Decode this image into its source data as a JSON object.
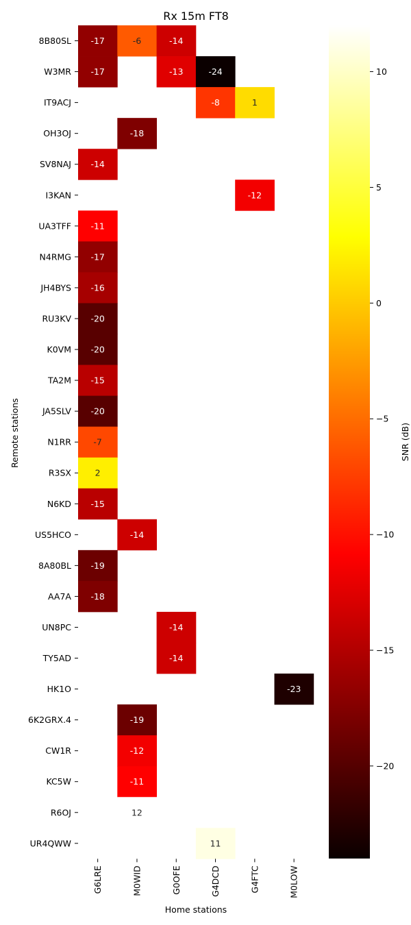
{
  "chart_data": {
    "type": "heatmap",
    "title": "Rx 15m FT8",
    "xlabel": "Home stations",
    "ylabel": "Remote stations",
    "colorbar_label": "SNR (dB)",
    "colormap": "hot",
    "vmin": -24,
    "vmax": 12,
    "colorbar_ticks": [
      10,
      5,
      0,
      -5,
      -10,
      -15,
      -20
    ],
    "colorbar_tick_labels": [
      "10",
      "5",
      "0",
      "−5",
      "−10",
      "−15",
      "−20"
    ],
    "columns": [
      "G6LRE",
      "M0WID",
      "G0OFE",
      "G4DCD",
      "G4FTC",
      "M0LOW"
    ],
    "rows": [
      "8B80SL",
      "W3MR",
      "IT9ACJ",
      "OH3OJ",
      "SV8NAJ",
      "I3KAN",
      "UA3TFF",
      "N4RMG",
      "JH4BYS",
      "RU3KV",
      "K0VM",
      "TA2M",
      "JA5SLV",
      "N1RR",
      "R3SX",
      "N6KD",
      "US5HCO",
      "8A80BL",
      "AA7A",
      "UN8PC",
      "TY5AD",
      "HK1O",
      "6K2GRX.4",
      "CW1R",
      "KC5W",
      "R6OJ",
      "UR4QWW"
    ],
    "values": [
      [
        -17,
        -6,
        -14,
        null,
        null,
        null
      ],
      [
        -17,
        null,
        -13,
        -24,
        null,
        null
      ],
      [
        null,
        null,
        null,
        -8,
        1,
        null
      ],
      [
        null,
        -18,
        null,
        null,
        null,
        null
      ],
      [
        -14,
        null,
        null,
        null,
        null,
        null
      ],
      [
        null,
        null,
        null,
        null,
        -12,
        null
      ],
      [
        -11,
        null,
        null,
        null,
        null,
        null
      ],
      [
        -17,
        null,
        null,
        null,
        null,
        null
      ],
      [
        -16,
        null,
        null,
        null,
        null,
        null
      ],
      [
        -20,
        null,
        null,
        null,
        null,
        null
      ],
      [
        -20,
        null,
        null,
        null,
        null,
        null
      ],
      [
        -15,
        null,
        null,
        null,
        null,
        null
      ],
      [
        -20,
        null,
        null,
        null,
        null,
        null
      ],
      [
        -7,
        null,
        null,
        null,
        null,
        null
      ],
      [
        2,
        null,
        null,
        null,
        null,
        null
      ],
      [
        -15,
        null,
        null,
        null,
        null,
        null
      ],
      [
        null,
        -14,
        null,
        null,
        null,
        null
      ],
      [
        -19,
        null,
        null,
        null,
        null,
        null
      ],
      [
        -18,
        null,
        null,
        null,
        null,
        null
      ],
      [
        null,
        null,
        -14,
        null,
        null,
        null
      ],
      [
        null,
        null,
        -14,
        null,
        null,
        null
      ],
      [
        null,
        null,
        null,
        null,
        null,
        -23
      ],
      [
        null,
        -19,
        null,
        null,
        null,
        null
      ],
      [
        null,
        -12,
        null,
        null,
        null,
        null
      ],
      [
        null,
        -11,
        null,
        null,
        null,
        null
      ],
      [
        null,
        12,
        null,
        null,
        null,
        null
      ],
      [
        null,
        null,
        null,
        11,
        null,
        null
      ]
    ]
  }
}
